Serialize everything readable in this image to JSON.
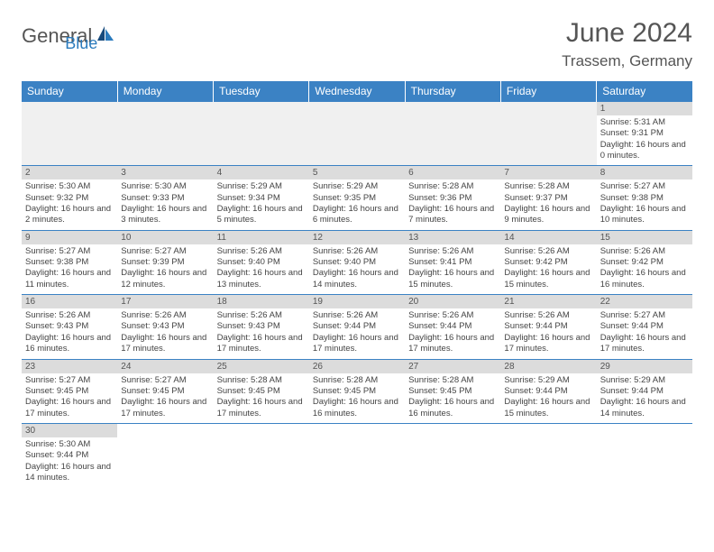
{
  "logo": {
    "part1": "General",
    "part2": "Blue"
  },
  "title": "June 2024",
  "location": "Trassem, Germany",
  "colors": {
    "header_bg": "#3b82c4",
    "header_text": "#ffffff",
    "daynum_bg": "#dcdcdc",
    "empty_bg": "#f0f0f0",
    "text": "#444444",
    "logo_accent": "#2b7bbd",
    "border": "#3b82c4"
  },
  "weekdays": [
    "Sunday",
    "Monday",
    "Tuesday",
    "Wednesday",
    "Thursday",
    "Friday",
    "Saturday"
  ],
  "weeks": [
    [
      null,
      null,
      null,
      null,
      null,
      null,
      {
        "n": "1",
        "sr": "Sunrise: 5:31 AM",
        "ss": "Sunset: 9:31 PM",
        "dl": "Daylight: 16 hours and 0 minutes."
      }
    ],
    [
      {
        "n": "2",
        "sr": "Sunrise: 5:30 AM",
        "ss": "Sunset: 9:32 PM",
        "dl": "Daylight: 16 hours and 2 minutes."
      },
      {
        "n": "3",
        "sr": "Sunrise: 5:30 AM",
        "ss": "Sunset: 9:33 PM",
        "dl": "Daylight: 16 hours and 3 minutes."
      },
      {
        "n": "4",
        "sr": "Sunrise: 5:29 AM",
        "ss": "Sunset: 9:34 PM",
        "dl": "Daylight: 16 hours and 5 minutes."
      },
      {
        "n": "5",
        "sr": "Sunrise: 5:29 AM",
        "ss": "Sunset: 9:35 PM",
        "dl": "Daylight: 16 hours and 6 minutes."
      },
      {
        "n": "6",
        "sr": "Sunrise: 5:28 AM",
        "ss": "Sunset: 9:36 PM",
        "dl": "Daylight: 16 hours and 7 minutes."
      },
      {
        "n": "7",
        "sr": "Sunrise: 5:28 AM",
        "ss": "Sunset: 9:37 PM",
        "dl": "Daylight: 16 hours and 9 minutes."
      },
      {
        "n": "8",
        "sr": "Sunrise: 5:27 AM",
        "ss": "Sunset: 9:38 PM",
        "dl": "Daylight: 16 hours and 10 minutes."
      }
    ],
    [
      {
        "n": "9",
        "sr": "Sunrise: 5:27 AM",
        "ss": "Sunset: 9:38 PM",
        "dl": "Daylight: 16 hours and 11 minutes."
      },
      {
        "n": "10",
        "sr": "Sunrise: 5:27 AM",
        "ss": "Sunset: 9:39 PM",
        "dl": "Daylight: 16 hours and 12 minutes."
      },
      {
        "n": "11",
        "sr": "Sunrise: 5:26 AM",
        "ss": "Sunset: 9:40 PM",
        "dl": "Daylight: 16 hours and 13 minutes."
      },
      {
        "n": "12",
        "sr": "Sunrise: 5:26 AM",
        "ss": "Sunset: 9:40 PM",
        "dl": "Daylight: 16 hours and 14 minutes."
      },
      {
        "n": "13",
        "sr": "Sunrise: 5:26 AM",
        "ss": "Sunset: 9:41 PM",
        "dl": "Daylight: 16 hours and 15 minutes."
      },
      {
        "n": "14",
        "sr": "Sunrise: 5:26 AM",
        "ss": "Sunset: 9:42 PM",
        "dl": "Daylight: 16 hours and 15 minutes."
      },
      {
        "n": "15",
        "sr": "Sunrise: 5:26 AM",
        "ss": "Sunset: 9:42 PM",
        "dl": "Daylight: 16 hours and 16 minutes."
      }
    ],
    [
      {
        "n": "16",
        "sr": "Sunrise: 5:26 AM",
        "ss": "Sunset: 9:43 PM",
        "dl": "Daylight: 16 hours and 16 minutes."
      },
      {
        "n": "17",
        "sr": "Sunrise: 5:26 AM",
        "ss": "Sunset: 9:43 PM",
        "dl": "Daylight: 16 hours and 17 minutes."
      },
      {
        "n": "18",
        "sr": "Sunrise: 5:26 AM",
        "ss": "Sunset: 9:43 PM",
        "dl": "Daylight: 16 hours and 17 minutes."
      },
      {
        "n": "19",
        "sr": "Sunrise: 5:26 AM",
        "ss": "Sunset: 9:44 PM",
        "dl": "Daylight: 16 hours and 17 minutes."
      },
      {
        "n": "20",
        "sr": "Sunrise: 5:26 AM",
        "ss": "Sunset: 9:44 PM",
        "dl": "Daylight: 16 hours and 17 minutes."
      },
      {
        "n": "21",
        "sr": "Sunrise: 5:26 AM",
        "ss": "Sunset: 9:44 PM",
        "dl": "Daylight: 16 hours and 17 minutes."
      },
      {
        "n": "22",
        "sr": "Sunrise: 5:27 AM",
        "ss": "Sunset: 9:44 PM",
        "dl": "Daylight: 16 hours and 17 minutes."
      }
    ],
    [
      {
        "n": "23",
        "sr": "Sunrise: 5:27 AM",
        "ss": "Sunset: 9:45 PM",
        "dl": "Daylight: 16 hours and 17 minutes."
      },
      {
        "n": "24",
        "sr": "Sunrise: 5:27 AM",
        "ss": "Sunset: 9:45 PM",
        "dl": "Daylight: 16 hours and 17 minutes."
      },
      {
        "n": "25",
        "sr": "Sunrise: 5:28 AM",
        "ss": "Sunset: 9:45 PM",
        "dl": "Daylight: 16 hours and 17 minutes."
      },
      {
        "n": "26",
        "sr": "Sunrise: 5:28 AM",
        "ss": "Sunset: 9:45 PM",
        "dl": "Daylight: 16 hours and 16 minutes."
      },
      {
        "n": "27",
        "sr": "Sunrise: 5:28 AM",
        "ss": "Sunset: 9:45 PM",
        "dl": "Daylight: 16 hours and 16 minutes."
      },
      {
        "n": "28",
        "sr": "Sunrise: 5:29 AM",
        "ss": "Sunset: 9:44 PM",
        "dl": "Daylight: 16 hours and 15 minutes."
      },
      {
        "n": "29",
        "sr": "Sunrise: 5:29 AM",
        "ss": "Sunset: 9:44 PM",
        "dl": "Daylight: 16 hours and 14 minutes."
      }
    ],
    [
      {
        "n": "30",
        "sr": "Sunrise: 5:30 AM",
        "ss": "Sunset: 9:44 PM",
        "dl": "Daylight: 16 hours and 14 minutes."
      },
      null,
      null,
      null,
      null,
      null,
      null
    ]
  ]
}
